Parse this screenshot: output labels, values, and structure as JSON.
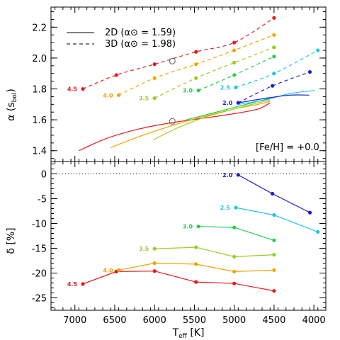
{
  "chart_data": [
    {
      "type": "line",
      "panel": "top",
      "ylabel": "α (s_bol)",
      "xlabel": "",
      "xlim": [
        7300,
        3850
      ],
      "ylim": [
        1.33,
        2.33
      ],
      "yticks": [
        "1.4",
        "1.6",
        "1.8",
        "2.0",
        "2.2"
      ],
      "annotation": "[Fe/H] = +0.0",
      "legend": {
        "position": "top-left",
        "entries": [
          {
            "label": "2D (α⊙ = 1.59)",
            "style": "solid"
          },
          {
            "label": "3D (α⊙ = 1.98)",
            "style": "dashed"
          }
        ]
      },
      "solar_markers": [
        {
          "teff": 5777,
          "alpha": 1.98
        },
        {
          "teff": 5777,
          "alpha": 1.59
        }
      ],
      "series": [
        {
          "name": "4.5",
          "color": "#e8191c",
          "points_3d": [
            [
              6900,
              1.8
            ],
            [
              6480,
              1.89
            ],
            [
              6000,
              1.96
            ],
            [
              5480,
              2.04
            ],
            [
              5000,
              2.1
            ],
            [
              4500,
              2.26
            ]
          ],
          "curve_2d": [
            [
              6950,
              1.4
            ],
            [
              6600,
              1.48
            ],
            [
              6200,
              1.54
            ],
            [
              5800,
              1.58
            ],
            [
              5400,
              1.61
            ],
            [
              5000,
              1.64
            ],
            [
              4700,
              1.67
            ],
            [
              4550,
              1.71
            ]
          ]
        },
        {
          "name": "4.0",
          "color": "#f5a100",
          "points_3d": [
            [
              6450,
              1.76
            ],
            [
              6000,
              1.87
            ],
            [
              5480,
              1.96
            ],
            [
              5000,
              2.05
            ],
            [
              4500,
              2.15
            ]
          ],
          "curve_2d": [
            [
              6550,
              1.42
            ],
            [
              6200,
              1.49
            ],
            [
              5800,
              1.56
            ],
            [
              5400,
              1.62
            ],
            [
              5000,
              1.67
            ],
            [
              4700,
              1.7
            ],
            [
              4550,
              1.72
            ]
          ]
        },
        {
          "name": "3.5",
          "color": "#9acd1e",
          "points_3d": [
            [
              6000,
              1.74
            ],
            [
              5480,
              1.87
            ],
            [
              5000,
              1.97
            ],
            [
              4500,
              2.07
            ]
          ],
          "curve_2d": [
            [
              6020,
              1.47
            ],
            [
              5700,
              1.55
            ],
            [
              5350,
              1.62
            ],
            [
              5000,
              1.67
            ],
            [
              4700,
              1.71
            ],
            [
              4550,
              1.73
            ]
          ]
        },
        {
          "name": "3.0",
          "color": "#22d04a",
          "points_3d": [
            [
              5450,
              1.79
            ],
            [
              5000,
              1.89
            ],
            [
              4500,
              2.01
            ]
          ],
          "curve_2d": [
            [
              5600,
              1.6
            ],
            [
              5300,
              1.64
            ],
            [
              5000,
              1.68
            ],
            [
              4700,
              1.72
            ],
            [
              4550,
              1.74
            ]
          ]
        },
        {
          "name": "2.5",
          "color": "#1ec6e6",
          "points_3d": [
            [
              4980,
              1.81
            ],
            [
              4500,
              1.9
            ],
            [
              3950,
              2.05
            ]
          ],
          "curve_2d": [
            [
              4950,
              1.7
            ],
            [
              4600,
              1.73
            ],
            [
              4300,
              1.77
            ],
            [
              3990,
              1.79
            ]
          ]
        },
        {
          "name": "2.0",
          "color": "#1a1adb",
          "points_3d": [
            [
              4950,
              1.71
            ],
            [
              4520,
              1.82
            ],
            [
              4050,
              1.91
            ]
          ],
          "curve_2d": [
            [
              4950,
              1.71
            ],
            [
              4600,
              1.74
            ],
            [
              4300,
              1.76
            ],
            [
              4060,
              1.76
            ]
          ]
        }
      ]
    },
    {
      "type": "line",
      "panel": "bottom",
      "ylabel": "δ [%]",
      "xlabel": "T_eff [K]",
      "xlim": [
        7300,
        3850
      ],
      "ylim": [
        -27.5,
        2.5
      ],
      "xticks": [
        "7000",
        "6500",
        "6000",
        "5500",
        "5000",
        "4500",
        "4000"
      ],
      "yticks": [
        "0",
        "-5",
        "-10",
        "-15",
        "-20",
        "-25"
      ],
      "reference_line": 0,
      "series": [
        {
          "name": "4.5",
          "color": "#e8191c",
          "points": [
            [
              6900,
              -22.2
            ],
            [
              6480,
              -19.7
            ],
            [
              6000,
              -19.6
            ],
            [
              5480,
              -21.8
            ],
            [
              5000,
              -22.1
            ],
            [
              4500,
              -23.6
            ]
          ]
        },
        {
          "name": "4.0",
          "color": "#f5a100",
          "points": [
            [
              6450,
              -19.4
            ],
            [
              6000,
              -18.0
            ],
            [
              5480,
              -18.2
            ],
            [
              5000,
              -19.7
            ],
            [
              4500,
              -19.4
            ]
          ]
        },
        {
          "name": "3.5",
          "color": "#9acd1e",
          "points": [
            [
              6000,
              -15.1
            ],
            [
              5480,
              -14.8
            ],
            [
              5000,
              -16.7
            ],
            [
              4500,
              -16.3
            ]
          ]
        },
        {
          "name": "3.0",
          "color": "#22d04a",
          "points": [
            [
              5450,
              -10.6
            ],
            [
              5000,
              -10.8
            ],
            [
              4500,
              -13.4
            ]
          ]
        },
        {
          "name": "2.5",
          "color": "#1ec6e6",
          "points": [
            [
              4980,
              -6.8
            ],
            [
              4500,
              -8.3
            ],
            [
              3950,
              -11.7
            ]
          ]
        },
        {
          "name": "2.0",
          "color": "#1a1adb",
          "points": [
            [
              4950,
              -0.2
            ],
            [
              4520,
              -4.0
            ],
            [
              4050,
              -7.8
            ]
          ]
        }
      ]
    }
  ]
}
